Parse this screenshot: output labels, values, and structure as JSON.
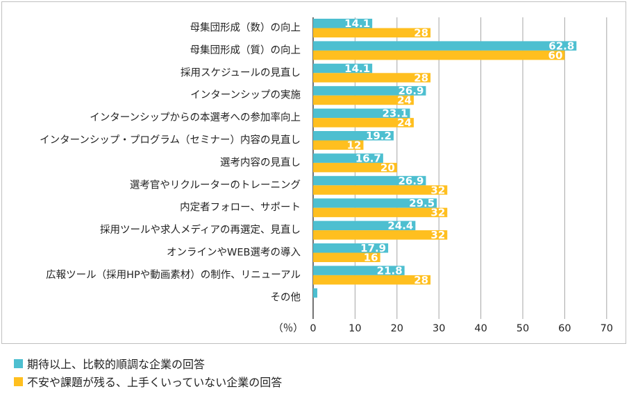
{
  "chart_data": {
    "type": "bar",
    "orientation": "horizontal",
    "categories": [
      "母集団形成（数）の向上",
      "母集団形成（質）の向上",
      "採用スケジュールの見直し",
      "インターンシップの実施",
      "インターンシップからの本選考への参加率向上",
      "インターンシップ・プログラム（セミナー）内容の見直し",
      "選考内容の見直し",
      "選考官やリクルーターのトレーニング",
      "内定者フォロー、サポート",
      "採用ツールや求人メディアの再選定、見直し",
      "オンラインやWEB選考の導入",
      "広報ツール（採用HPや動画素材）の制作、リニューアル",
      "その他"
    ],
    "series": [
      {
        "name": "期待以上、比較的順調な企業の回答",
        "color": "#4dbfd0",
        "values": [
          14.1,
          62.8,
          14.1,
          26.9,
          23.1,
          19.2,
          16.7,
          26.9,
          29.5,
          24.4,
          17.9,
          21.8,
          1
        ],
        "labels": [
          "14.1",
          "62.8",
          "14.1",
          "26.9",
          "23.1",
          "19.2",
          "16.7",
          "26.9",
          "29.5",
          "24.4",
          "17.9",
          "21.8",
          ""
        ]
      },
      {
        "name": "不安や課題が残る、上手くいっていない企業の回答",
        "color": "#ffbf1f",
        "values": [
          28,
          60,
          28,
          24,
          24,
          12,
          20,
          32,
          32,
          32,
          16,
          28,
          0
        ],
        "labels": [
          "28",
          "60",
          "28",
          "24",
          "24",
          "12",
          "20",
          "32",
          "32",
          "32",
          "16",
          "28",
          ""
        ]
      }
    ],
    "xlabel": "（％）",
    "xlim": [
      0,
      70
    ],
    "xticks": [
      "0",
      "10",
      "20",
      "30",
      "40",
      "50",
      "60",
      "70"
    ],
    "grid": true,
    "legend": "bottom-left"
  }
}
